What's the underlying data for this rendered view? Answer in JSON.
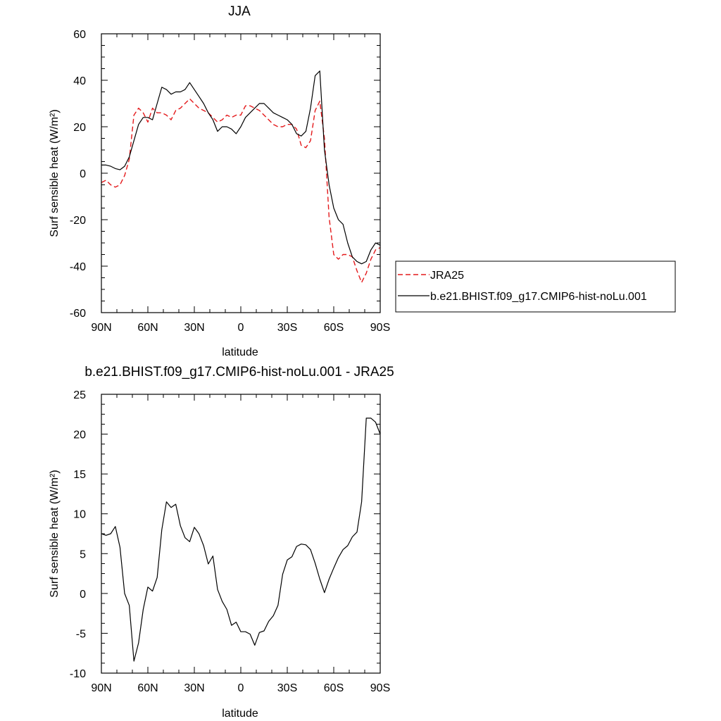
{
  "chart_data": [
    {
      "type": "line",
      "title": "JJA",
      "xlabel": "latitude",
      "ylabel": "Surf sensible heat (W/m²)",
      "xlim": [
        90,
        -90
      ],
      "ylim": [
        -60,
        60
      ],
      "xticks": [
        90,
        60,
        30,
        0,
        -30,
        -60,
        -90
      ],
      "xtick_labels": [
        "90N",
        "60N",
        "30N",
        "0",
        "30S",
        "60S",
        "90S"
      ],
      "yticks": [
        -60,
        -40,
        -20,
        0,
        20,
        40,
        60
      ],
      "ytick_labels": [
        "-60",
        "-40",
        "-20",
        "0",
        "20",
        "40",
        "60"
      ],
      "grid": false,
      "legend": "right",
      "series": [
        {
          "name": "JRA25",
          "color": "#e41a1c",
          "dash": "dashed",
          "x": [
            90,
            87,
            84,
            81,
            78,
            75,
            72,
            69,
            66,
            63,
            60,
            57,
            54,
            51,
            48,
            45,
            42,
            39,
            36,
            33,
            30,
            27,
            24,
            21,
            18,
            15,
            12,
            9,
            6,
            3,
            0,
            -3,
            -6,
            -9,
            -12,
            -15,
            -18,
            -21,
            -24,
            -27,
            -30,
            -33,
            -36,
            -39,
            -42,
            -45,
            -48,
            -51,
            -54,
            -57,
            -60,
            -63,
            -66,
            -69,
            -72,
            -75,
            -78,
            -81,
            -84,
            -87,
            -90
          ],
          "y": [
            -4,
            -3,
            -5,
            -6,
            -5,
            -1,
            6,
            25,
            28,
            26,
            22,
            28,
            26,
            26,
            25,
            23,
            27,
            28,
            30,
            32,
            30,
            28,
            27,
            26,
            24,
            22,
            23,
            25,
            24,
            25,
            25,
            29,
            29,
            28,
            27,
            25,
            23,
            21,
            20,
            20,
            21,
            21,
            19,
            12,
            11,
            14,
            27,
            31,
            15,
            -19,
            -35,
            -37,
            -35,
            -35,
            -36,
            -42,
            -47,
            -43,
            -37,
            -33,
            -32
          ]
        },
        {
          "name": "b.e21.BHIST.f09_g17.CMIP6-hist-noLu.001",
          "color": "#000000",
          "dash": "solid",
          "x": [
            90,
            87,
            84,
            81,
            78,
            75,
            72,
            69,
            66,
            63,
            60,
            57,
            54,
            51,
            48,
            45,
            42,
            39,
            36,
            33,
            30,
            27,
            24,
            21,
            18,
            15,
            12,
            9,
            6,
            3,
            0,
            -3,
            -6,
            -9,
            -12,
            -15,
            -18,
            -21,
            -24,
            -27,
            -30,
            -33,
            -36,
            -39,
            -42,
            -45,
            -48,
            -51,
            -54,
            -57,
            -60,
            -63,
            -66,
            -69,
            -72,
            -75,
            -78,
            -81,
            -84,
            -87,
            -90
          ],
          "y": [
            3.5,
            3.5,
            3,
            2,
            1.5,
            3,
            7,
            14,
            21,
            24,
            24,
            23,
            30,
            37,
            36,
            34,
            35,
            35,
            36,
            39,
            36,
            33,
            30,
            26,
            23,
            18,
            20,
            20,
            19,
            17,
            20,
            24,
            26,
            28,
            30,
            30,
            28,
            26,
            25,
            24,
            23,
            21,
            17,
            16,
            18,
            28,
            42,
            44,
            10,
            -5,
            -15,
            -20,
            -22,
            -30,
            -36,
            -38,
            -39,
            -38,
            -33,
            -30,
            -31
          ]
        }
      ]
    },
    {
      "type": "line",
      "title": "b.e21.BHIST.f09_g17.CMIP6-hist-noLu.001 - JRA25",
      "xlabel": "latitude",
      "ylabel": "Surf sensible heat (W/m²)",
      "xlim": [
        90,
        -90
      ],
      "ylim": [
        -10,
        25
      ],
      "xticks": [
        90,
        60,
        30,
        0,
        -30,
        -60,
        -90
      ],
      "xtick_labels": [
        "90N",
        "60N",
        "30N",
        "0",
        "30S",
        "60S",
        "90S"
      ],
      "yticks": [
        -10,
        -5,
        0,
        5,
        10,
        15,
        20,
        25
      ],
      "ytick_labels": [
        "-10",
        "-5",
        "0",
        "5",
        "10",
        "15",
        "20",
        "25"
      ],
      "grid": false,
      "series": [
        {
          "color": "#000000",
          "dash": "solid",
          "x": [
            90,
            87,
            84,
            81,
            78,
            75,
            72,
            69,
            66,
            63,
            60,
            57,
            54,
            51,
            48,
            45,
            42,
            39,
            36,
            33,
            30,
            27,
            24,
            21,
            18,
            15,
            12,
            9,
            6,
            3,
            0,
            -3,
            -6,
            -9,
            -12,
            -15,
            -18,
            -21,
            -24,
            -27,
            -30,
            -33,
            -36,
            -39,
            -42,
            -45,
            -48,
            -51,
            -54,
            -57,
            -60,
            -63,
            -66,
            -69,
            -72,
            -75,
            -78,
            -81,
            -84,
            -87,
            -90
          ],
          "y": [
            7.5,
            7.3,
            7.5,
            8.4,
            5.8,
            0,
            -1.5,
            -8.5,
            -6.2,
            -2,
            0.8,
            0.3,
            2,
            8,
            11.5,
            10.8,
            11.2,
            8.5,
            7,
            6.5,
            8.3,
            7.5,
            6,
            3.7,
            4.7,
            0.5,
            -1,
            -2,
            -4,
            -3.6,
            -4.8,
            -4.8,
            -5.1,
            -6.5,
            -4.9,
            -4.7,
            -3.5,
            -2.8,
            -1.5,
            2.4,
            4.2,
            4.6,
            5.9,
            6.2,
            6.1,
            5.5,
            3.8,
            1.8,
            0.1,
            1.8,
            3.2,
            4.5,
            5.5,
            6,
            7.1,
            7.7,
            11.5,
            22,
            22,
            21.5,
            20
          ]
        }
      ]
    }
  ]
}
